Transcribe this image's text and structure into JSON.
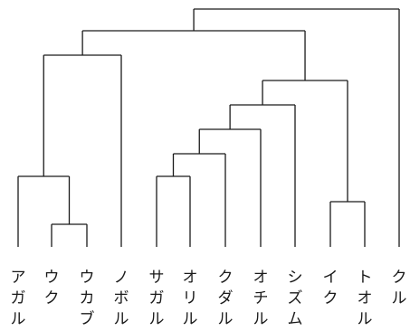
{
  "diagram": {
    "type": "dendrogram",
    "leaves": [
      {
        "id": "L1",
        "label": "ア\nガ\nル"
      },
      {
        "id": "L2",
        "label": "ウ\nク"
      },
      {
        "id": "L3",
        "label": "ウ\nカ\nブ"
      },
      {
        "id": "L4",
        "label": "ノ\nボ\nル"
      },
      {
        "id": "L5",
        "label": "サ\nガ\nル"
      },
      {
        "id": "L6",
        "label": "オ\nリ\nル"
      },
      {
        "id": "L7",
        "label": "ク\nダ\nル"
      },
      {
        "id": "L8",
        "label": "オ\nチ\nル"
      },
      {
        "id": "L9",
        "label": "シ\nズ\nム"
      },
      {
        "id": "L10",
        "label": "イ\nク"
      },
      {
        "id": "L11",
        "label": "ト\nオ\nル"
      },
      {
        "id": "L12",
        "label": "ク\nル"
      }
    ],
    "merges": [
      {
        "id": "M1",
        "children": [
          "L2",
          "L3"
        ]
      },
      {
        "id": "M2",
        "children": [
          "L1",
          "M1"
        ]
      },
      {
        "id": "M3",
        "children": [
          "M2",
          "L4"
        ]
      },
      {
        "id": "M4",
        "children": [
          "L5",
          "L6"
        ]
      },
      {
        "id": "M5",
        "children": [
          "M4",
          "L7"
        ]
      },
      {
        "id": "M6",
        "children": [
          "M5",
          "L8"
        ]
      },
      {
        "id": "M7",
        "children": [
          "M6",
          "L9"
        ]
      },
      {
        "id": "M8",
        "children": [
          "L10",
          "L11"
        ]
      },
      {
        "id": "M9",
        "children": [
          "M7",
          "M8"
        ]
      },
      {
        "id": "M10",
        "children": [
          "M3",
          "M9"
        ]
      },
      {
        "id": "M11",
        "children": [
          "M10",
          "L12"
        ]
      }
    ]
  }
}
